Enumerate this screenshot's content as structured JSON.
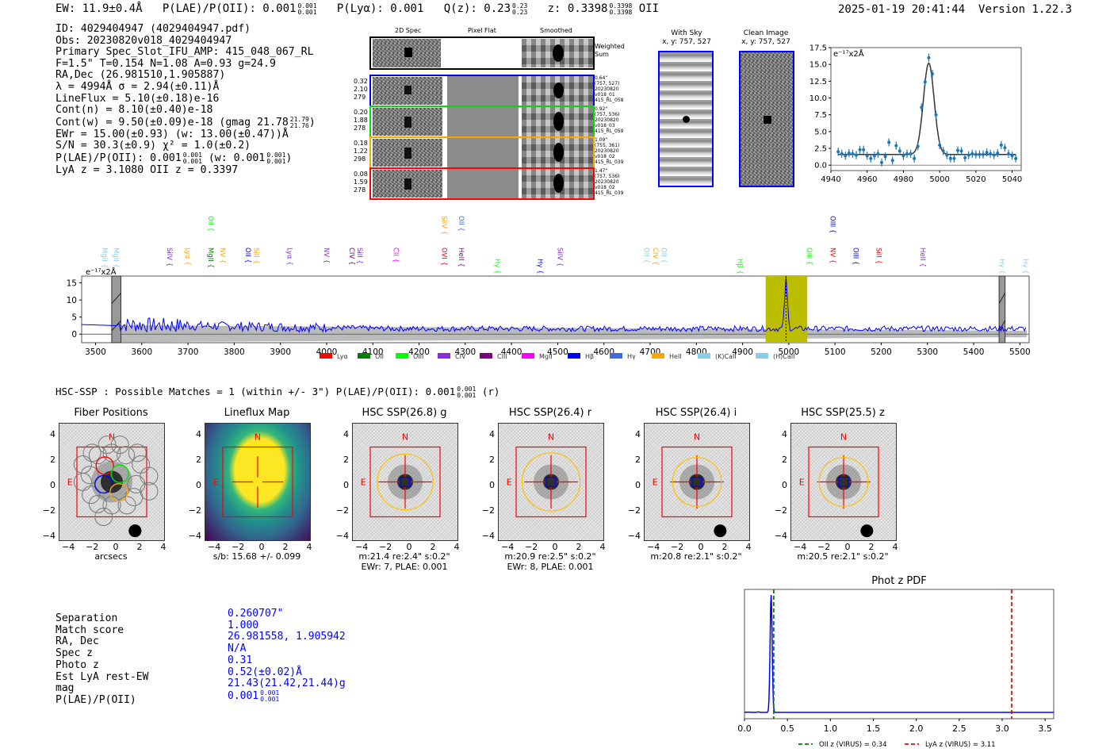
{
  "header": {
    "ew": "EW: 11.9±0.4Å",
    "plae_label": "P(LAE)/P(OII): 0.001",
    "plae_hi": "0.001",
    "plae_lo": "0.001",
    "plya": "P(Lyα): 0.001",
    "qz_label": "Q(z): 0.23",
    "qz_hi": "0.23",
    "qz_lo": "0.23",
    "z_label": "z: 0.3398",
    "z_hi": "0.3398",
    "z_lo": "0.3398",
    "z_line": "OII",
    "timestamp": "2025-01-19 20:41:44",
    "version": "Version 1.22.3"
  },
  "info": {
    "id": "ID: 4029404947 (4029404947.pdf)",
    "obs": "Obs: 20230820v018_4029404947",
    "primary": "Primary Spec_Slot_IFU_AMP: 415_048_067_RL",
    "params": "F=1.5\"  T=0.154  N=1.08  A=0.93  g=24.9",
    "radec": "RA,Dec (26.981510,1.905887)",
    "lambda": "λ = 4994Å   σ = 2.94(±0.11)Å",
    "lineflux": "LineFlux = 5.10(±0.18)e-16",
    "cont_n": "Cont(n) = 8.10(±0.40)e-18",
    "cont_w": "Cont(w) = 9.50(±0.09)e-18 (gmag 21.78",
    "cont_w_hi": "21.79",
    "cont_w_lo": "21.76",
    "cont_w_end": ")",
    "ewr": "EWr = 15.00(±0.93) (w: 13.00(±0.47))Å",
    "sn": "S/N = 30.3(±0.9)   χ² = 1.0(±0.2)",
    "plae": "P(LAE)/P(OII): 0.001",
    "plae_hi": "0.001",
    "plae_lo": "0.001",
    "plae_w": "(w: 0.001",
    "plae_w_hi": "0.001",
    "plae_w_lo": "0.001",
    "plae_w_end": ")",
    "z": "LyA z = 3.1080  OII z = 0.3397"
  },
  "spec2d": {
    "col_titles": [
      "2D Spec",
      "Pixel Flat",
      "Smoothed"
    ],
    "weighted_label": "Weighted Sum",
    "fibers": [
      {
        "color": "#0000ff",
        "left": [
          "0.32",
          "2.10",
          "279"
        ],
        "right": [
          "0.64\"",
          "(757, 527)",
          "20230820",
          "v018_01",
          "415_RL_058"
        ]
      },
      {
        "color": "#00dd00",
        "left": [
          "0.20",
          "1.88",
          "278"
        ],
        "right": [
          "0.92\"",
          "(757, 536)",
          "20230820",
          "v018_03",
          "415_RL_059"
        ]
      },
      {
        "color": "#ffa500",
        "left": [
          "0.18",
          "1.22",
          "298"
        ],
        "right": [
          "1.09\"",
          "(755, 361)",
          "20230820",
          "v018_02",
          "415_RL_039"
        ]
      },
      {
        "color": "#ff0000",
        "left": [
          "0.08",
          "1.59",
          "278"
        ],
        "right": [
          "1.47\"",
          "(757, 536)",
          "20230820",
          "v018_02",
          "415_RL_039"
        ]
      }
    ]
  },
  "cutouts": {
    "with_sky_title": "With Sky",
    "with_sky_xy": "x, y: 757, 527",
    "clean_title": "Clean Image",
    "clean_xy": "x, y: 757, 527"
  },
  "fullspec_labels": {
    "unit": "e⁻¹⁷x2Å",
    "lines": [
      {
        "name": "MgII",
        "wave": 3520,
        "row": 1,
        "color": "#87ceeb"
      },
      {
        "name": "MgII",
        "wave": 3545,
        "row": 1,
        "color": "#87ceeb"
      },
      {
        "name": "SiIV",
        "wave": 3660,
        "row": 1,
        "color": "#8a2be2"
      },
      {
        "name": "Lyα",
        "wave": 3700,
        "row": 1,
        "color": "#ffa500"
      },
      {
        "name": "OII",
        "wave": 3750,
        "row": 0,
        "color": "#00ff00"
      },
      {
        "name": "MgII",
        "wave": 3750,
        "row": 1,
        "color": "#008000"
      },
      {
        "name": "NV",
        "wave": 3775,
        "row": 1,
        "color": "#ffa500"
      },
      {
        "name": "OII",
        "wave": 3830,
        "row": 1,
        "color": "#0000ff"
      },
      {
        "name": "SiII",
        "wave": 3848,
        "row": 1,
        "color": "#ffa500"
      },
      {
        "name": "Lyα",
        "wave": 3920,
        "row": 1,
        "color": "#8a2be2"
      },
      {
        "name": "NV",
        "wave": 4000,
        "row": 1,
        "color": "#8a2be2"
      },
      {
        "name": "CIV",
        "wave": 4055,
        "row": 1,
        "color": "#800080"
      },
      {
        "name": "SiII",
        "wave": 4072,
        "row": 1,
        "color": "#8a2be2"
      },
      {
        "name": "CII",
        "wave": 4150,
        "row": 1,
        "color": "#ff00ff"
      },
      {
        "name": "SiIV",
        "wave": 4255,
        "row": 0,
        "color": "#ffa500"
      },
      {
        "name": "OII",
        "wave": 4292,
        "row": 0,
        "color": "#4169e1"
      },
      {
        "name": "OVI",
        "wave": 4255,
        "row": 1,
        "color": "#ff0000"
      },
      {
        "name": "HeII",
        "wave": 4292,
        "row": 1,
        "color": "#800080"
      },
      {
        "name": "Hγ",
        "wave": 4370,
        "row": 2,
        "color": "#00ff00"
      },
      {
        "name": "Hγ",
        "wave": 4462,
        "row": 2,
        "color": "#0000ff"
      },
      {
        "name": "SiIV",
        "wave": 4505,
        "row": 1,
        "color": "#8a2be2"
      },
      {
        "name": "OII",
        "wave": 4692,
        "row": 1,
        "color": "#87ceeb"
      },
      {
        "name": "CIV",
        "wave": 4712,
        "row": 1,
        "color": "#ffa500"
      },
      {
        "name": "OII",
        "wave": 4730,
        "row": 1,
        "color": "#87ceeb"
      },
      {
        "name": "Hβ",
        "wave": 4895,
        "row": 2,
        "color": "#00ff00"
      },
      {
        "name": "OIII",
        "wave": 5045,
        "row": 1,
        "color": "#00ff00"
      },
      {
        "name": "OIII",
        "wave": 5095,
        "row": 0,
        "color": "#0000ff"
      },
      {
        "name": "NV",
        "wave": 5095,
        "row": 1,
        "color": "#ff0000"
      },
      {
        "name": "OIII",
        "wave": 5145,
        "row": 1,
        "color": "#0000ff"
      },
      {
        "name": "SiII",
        "wave": 5195,
        "row": 1,
        "color": "#ff0000"
      },
      {
        "name": "HeII",
        "wave": 5290,
        "row": 1,
        "color": "#8a2be2"
      },
      {
        "name": "Hγ",
        "wave": 5462,
        "row": 2,
        "color": "#87ceeb"
      },
      {
        "name": "Hγ",
        "wave": 5512,
        "row": 2,
        "color": "#87ceeb"
      }
    ]
  },
  "hsc": {
    "summary": "HSC-SSP : Possible Matches = 1 (within +/- 3\")  P(LAE)/P(OII): 0.001",
    "summary_hi": "0.001",
    "summary_lo": "0.001",
    "summary_end": "(r)",
    "panels": [
      {
        "title": "Fiber Positions",
        "caption1": "arcsecs",
        "caption2": ""
      },
      {
        "title": "Lineflux Map",
        "caption1": "s/b: 15.68 +/- 0.099",
        "caption2": ""
      },
      {
        "title": "HSC SSP(26.8) g",
        "caption1": "m:21.4  re:2.4\"  s:0.2\"",
        "caption2": "EWr: 7, PLAE: 0.001"
      },
      {
        "title": "HSC SSP(26.4) r",
        "caption1": "m:20.9  re:2.5\"  s:0.2\"",
        "caption2": "EWr: 8, PLAE: 0.001"
      },
      {
        "title": "HSC SSP(26.4) i",
        "caption1": "m:20.8  re:2.1\"  s:0.2\"",
        "caption2": ""
      },
      {
        "title": "HSC SSP(25.5) z",
        "caption1": "m:20.5  re:2.1\"  s:0.2\"",
        "caption2": ""
      }
    ],
    "n_label": "N",
    "e_label": "E",
    "ticks": [
      "4",
      "2",
      "0",
      "−2",
      "−4"
    ],
    "xticks": [
      "−4",
      "−2",
      "0",
      "2",
      "4"
    ]
  },
  "match": {
    "labels": [
      "Separation",
      "Match score",
      "RA, Dec",
      "Spec z",
      "Photo z",
      "Est LyA rest-EW",
      "mag",
      "P(LAE)/P(OII)"
    ],
    "values": [
      "0.260707\"",
      "1.000",
      "26.981558, 1.905942",
      "N/A",
      "0.31",
      "0.52(±0.02)Å",
      "21.43(21.42,21.44)g",
      "0.001"
    ],
    "plae_hi": "0.001",
    "plae_lo": "0.001"
  },
  "chart_data": [
    {
      "type": "scatter",
      "title": "",
      "annotation": "e⁻¹⁷x2Å",
      "xlim": [
        4940,
        5045
      ],
      "ylim": [
        -0.8,
        17.5
      ],
      "xticks": [
        4940,
        4960,
        4980,
        5000,
        5020,
        5040
      ],
      "yticks": [
        0.0,
        2.5,
        5.0,
        7.5,
        10.0,
        12.5,
        15.0,
        17.5
      ],
      "points": {
        "x": [
          4944,
          4946,
          4948,
          4950,
          4952,
          4954,
          4956,
          4958,
          4960,
          4962,
          4964,
          4966,
          4968,
          4970,
          4972,
          4974,
          4976,
          4978,
          4980,
          4982,
          4984,
          4986,
          4988,
          4990,
          4992,
          4994,
          4996,
          4998,
          5000,
          5002,
          5004,
          5006,
          5008,
          5010,
          5012,
          5014,
          5016,
          5018,
          5020,
          5022,
          5024,
          5026,
          5028,
          5030,
          5032,
          5034,
          5036,
          5038,
          5040,
          5042
        ],
        "y": [
          2.0,
          1.7,
          1.4,
          1.8,
          1.7,
          1.5,
          2.3,
          2.3,
          1.4,
          1.0,
          1.4,
          1.7,
          0.4,
          1.3,
          3.4,
          0.7,
          2.9,
          2.1,
          1.4,
          1.7,
          1.7,
          1.0,
          2.8,
          8.6,
          12.4,
          16.0,
          13.6,
          7.5,
          3.0,
          2.1,
          1.5,
          1.0,
          1.0,
          2.2,
          2.1,
          1.1,
          1.5,
          1.7,
          1.6,
          1.6,
          1.6,
          1.9,
          1.7,
          1.5,
          1.8,
          3.0,
          2.6,
          1.7,
          1.4,
          1.0
        ]
      },
      "fit": {
        "model": "gaussian",
        "center": 4994,
        "sigma": 2.94,
        "amplitude": 13.6,
        "continuum": 1.6
      },
      "series_color": "#1f77b4",
      "fit_color": "#333333"
    },
    {
      "type": "line",
      "title": "",
      "annotation": "e⁻¹⁷x2Å",
      "xlim": [
        3470,
        5520
      ],
      "ylim": [
        -2.5,
        17
      ],
      "xticks": [
        3500,
        3600,
        3700,
        3800,
        3900,
        4000,
        4100,
        4200,
        4300,
        4400,
        4500,
        4600,
        4700,
        4800,
        4900,
        5000,
        5100,
        5200,
        5300,
        5400,
        5500
      ],
      "yticks": [
        0,
        5,
        10,
        15
      ],
      "emission_line_wave": 4994,
      "peak_value": 16,
      "highlight_range": [
        4950,
        5040
      ],
      "masked_ranges": [
        [
          3535,
          3555
        ],
        [
          5455,
          5468
        ]
      ],
      "continuum_level_start": 2.8,
      "continuum_level_end": 1.6,
      "legend": [
        {
          "label": "Lyα",
          "color": "#ff0000"
        },
        {
          "label": "OII",
          "color": "#008000"
        },
        {
          "label": "OIII",
          "color": "#00ff00"
        },
        {
          "label": "CIV",
          "color": "#8a2be2"
        },
        {
          "label": "CIII",
          "color": "#800080"
        },
        {
          "label": "MgII",
          "color": "#ff00ff"
        },
        {
          "label": "Hβ",
          "color": "#0000ff"
        },
        {
          "label": "Hγ",
          "color": "#4169e1"
        },
        {
          "label": "HeII",
          "color": "#ffa500"
        },
        {
          "label": "(K)CaII",
          "color": "#87ceeb"
        },
        {
          "label": "(H)CaII",
          "color": "#87ceeb"
        }
      ],
      "legend_position": "bottom-center"
    },
    {
      "type": "line",
      "title": "Phot z PDF",
      "xlim": [
        0.0,
        3.6
      ],
      "xticks": [
        0.0,
        0.5,
        1.0,
        1.5,
        2.0,
        2.5,
        3.0,
        3.5
      ],
      "pdf_peak_z": 0.31,
      "vlines": [
        {
          "label": "OII z (VIRUS) = 0.34",
          "z": 0.34,
          "color": "#008000"
        },
        {
          "label": "LyA z (VIRUS) = 3.11",
          "z": 3.11,
          "color": "#ff0000"
        }
      ],
      "legend_position": "bottom-center"
    }
  ]
}
